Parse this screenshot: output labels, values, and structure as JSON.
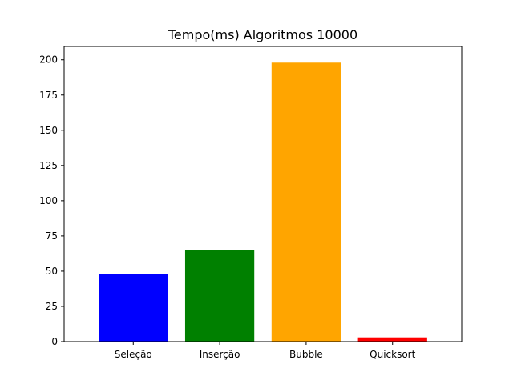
{
  "chart_data": {
    "type": "bar",
    "title": "Tempo(ms) Algoritmos 10000",
    "xlabel": "",
    "ylabel": "",
    "categories": [
      "Seleção",
      "Inserção",
      "Bubble",
      "Quicksort"
    ],
    "values": [
      48,
      65,
      198,
      3
    ],
    "colors": [
      "#0000ff",
      "#008000",
      "#ffa500",
      "#ff0000"
    ],
    "ylim": [
      0,
      209.5
    ],
    "yticks": [
      0,
      25,
      50,
      75,
      100,
      125,
      150,
      175,
      200
    ],
    "grid": false,
    "legend": "none"
  }
}
